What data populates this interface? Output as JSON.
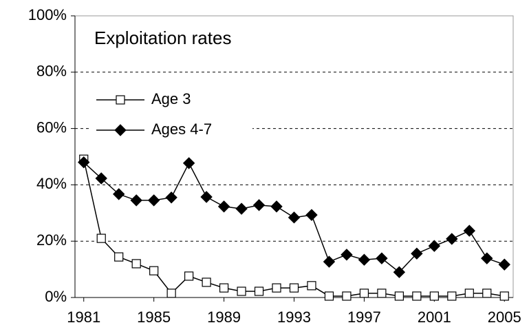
{
  "chart_data": {
    "type": "line",
    "annotation": "Exploitation rates",
    "x": [
      1981,
      1982,
      1983,
      1984,
      1985,
      1986,
      1987,
      1988,
      1989,
      1990,
      1991,
      1992,
      1993,
      1994,
      1995,
      1996,
      1997,
      1998,
      1999,
      2000,
      2001,
      2002,
      2003,
      2004,
      2005
    ],
    "series": [
      {
        "name": "Age 3",
        "color": "#000000",
        "marker": "open-square",
        "values": [
          49.1,
          21,
          14.4,
          12,
          9.5,
          1.5,
          7.6,
          5.4,
          3.4,
          2.2,
          2.2,
          3.4,
          3.4,
          4.2,
          0.5,
          0.5,
          1.5,
          1.5,
          0.5,
          0.5,
          0.5,
          0.5,
          1.5,
          1.5,
          0.5
        ]
      },
      {
        "name": "Ages 4-7",
        "color": "#000000",
        "marker": "filled-diamond",
        "values": [
          48,
          42.3,
          36.7,
          34.5,
          34.5,
          35.5,
          47.7,
          35.7,
          32.3,
          31.5,
          32.8,
          32.3,
          28.4,
          29.3,
          12.7,
          15.2,
          13.4,
          13.9,
          9,
          15.6,
          18.3,
          20.8,
          23.7,
          13.9,
          11.7
        ]
      }
    ],
    "xlim": [
      1980.5,
      2005.5
    ],
    "xticks": [
      1981,
      1985,
      1989,
      1993,
      1997,
      2001,
      2005
    ],
    "ylim": [
      0,
      100
    ],
    "yticks": [
      {
        "value": 0,
        "label": "0%"
      },
      {
        "value": 20,
        "label": "20%"
      },
      {
        "value": 40,
        "label": "40%"
      },
      {
        "value": 60,
        "label": "60%"
      },
      {
        "value": 80,
        "label": "80%"
      },
      {
        "value": 100,
        "label": "100%"
      }
    ],
    "grid": true,
    "legend": "upper-left"
  }
}
